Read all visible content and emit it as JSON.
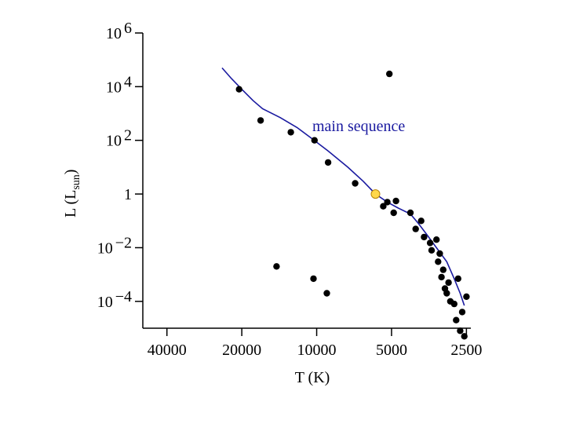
{
  "chart_data": {
    "type": "scatter",
    "title": "",
    "xlabel": "T (K)",
    "ylabel_main": "L (L",
    "ylabel_sub": "sun",
    "ylabel_close": ")",
    "x_scale": "log-reversed",
    "y_scale": "log",
    "xlim": [
      50000,
      2400
    ],
    "ylim": [
      1e-05,
      1000000
    ],
    "x_ticks": [
      {
        "value": 40000,
        "label": "40000"
      },
      {
        "value": 20000,
        "label": "20000"
      },
      {
        "value": 10000,
        "label": "10000"
      },
      {
        "value": 5000,
        "label": "5000"
      },
      {
        "value": 2500,
        "label": "2500"
      }
    ],
    "y_ticks": [
      {
        "value": 1000000,
        "base": "10",
        "exp": "6"
      },
      {
        "value": 10000,
        "base": "10",
        "exp": "4"
      },
      {
        "value": 100,
        "base": "10",
        "exp": "2"
      },
      {
        "value": 1,
        "base": "1",
        "exp": ""
      },
      {
        "value": 0.01,
        "base": "10",
        "exp": "−2"
      },
      {
        "value": 0.0001,
        "base": "10",
        "exp": "−4"
      }
    ],
    "annotation": {
      "text": "main sequence",
      "color": "#1a1aa0"
    },
    "line_color": "#1a1aa0",
    "point_color": "#000000",
    "sun_color": "#ffd84a",
    "grid": false,
    "main_sequence_curve": [
      [
        24000,
        50000
      ],
      [
        22000,
        20000
      ],
      [
        20000,
        8000
      ],
      [
        18000,
        3000
      ],
      [
        16500,
        1500
      ],
      [
        14000,
        700
      ],
      [
        12000,
        300
      ],
      [
        10500,
        120
      ],
      [
        9000,
        40
      ],
      [
        7500,
        10
      ],
      [
        6500,
        3
      ],
      [
        5800,
        1
      ],
      [
        5200,
        0.5
      ],
      [
        4700,
        0.3
      ],
      [
        4200,
        0.18
      ],
      [
        3900,
        0.08
      ],
      [
        3600,
        0.03
      ],
      [
        3300,
        0.01
      ],
      [
        3000,
        0.003
      ],
      [
        2800,
        0.0007
      ],
      [
        2650,
        0.0002
      ],
      [
        2550,
        7e-05
      ]
    ],
    "stars": [
      [
        20500,
        8000
      ],
      [
        16800,
        550
      ],
      [
        12700,
        200
      ],
      [
        10200,
        100
      ],
      [
        9000,
        15
      ],
      [
        7000,
        2.5
      ],
      [
        5400,
        0.35
      ],
      [
        5200,
        0.5
      ],
      [
        4900,
        0.2
      ],
      [
        4800,
        0.55
      ],
      [
        4200,
        0.2
      ],
      [
        4000,
        0.05
      ],
      [
        3800,
        0.1
      ],
      [
        3700,
        0.025
      ],
      [
        3500,
        0.015
      ],
      [
        3450,
        0.008
      ],
      [
        3300,
        0.02
      ],
      [
        3250,
        0.003
      ],
      [
        3200,
        0.006
      ],
      [
        3150,
        0.0008
      ],
      [
        3100,
        0.0015
      ],
      [
        3050,
        0.0003
      ],
      [
        3000,
        0.0002
      ],
      [
        2950,
        0.0005
      ],
      [
        2900,
        0.0001
      ],
      [
        2800,
        8e-05
      ],
      [
        2750,
        2e-05
      ],
      [
        2650,
        8e-06
      ],
      [
        2600,
        4e-05
      ],
      [
        2550,
        5e-06
      ],
      [
        2700,
        0.0007
      ],
      [
        2500,
        0.00015
      ],
      [
        5100,
        30000
      ],
      [
        14500,
        0.002
      ],
      [
        10300,
        0.0007
      ],
      [
        9100,
        0.0002
      ]
    ],
    "sun": [
      5800,
      1
    ]
  }
}
